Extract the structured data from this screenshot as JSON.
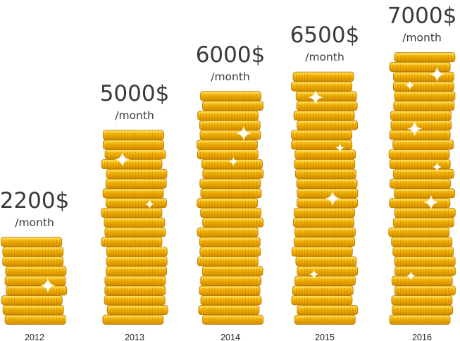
{
  "chart_data": {
    "type": "bar",
    "categories": [
      "2012",
      "2013",
      "2014",
      "2015",
      "2016"
    ],
    "values": [
      2200,
      5000,
      6000,
      6500,
      7000
    ],
    "value_labels": [
      "2200$",
      "5000$",
      "6000$",
      "6500$",
      "7000$"
    ],
    "unit_label": "/month",
    "ylim": [
      0,
      7000
    ],
    "grid": false,
    "legend": "none",
    "mark_style": "stacked gold coins"
  },
  "colors": {
    "coin_face": "#f5b400",
    "coin_light": "#ffd84a",
    "coin_dark": "#c98600",
    "coin_edge": "#b77700",
    "text": "#3a3a3a"
  }
}
